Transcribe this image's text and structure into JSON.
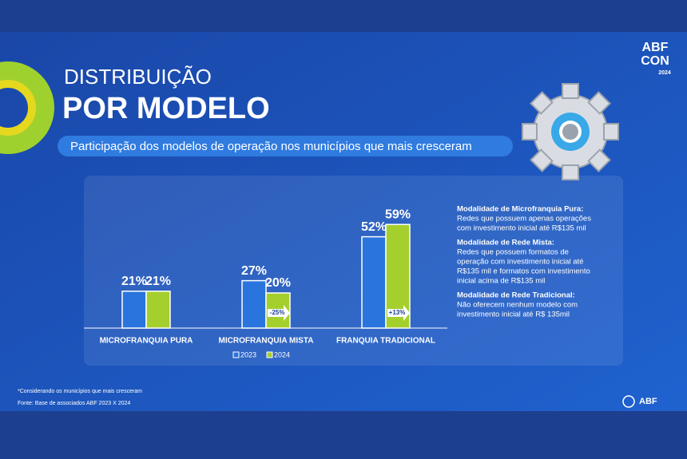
{
  "header": {
    "line1": "DISTRIBUIÇÃO",
    "line2": "POR MODELO",
    "subtitle": "Participação dos modelos de operação nos municípios que mais cresceram"
  },
  "logo": {
    "top": "ABF",
    "middle": "CON",
    "year": "2024",
    "bottom": "ABF"
  },
  "chart_data": {
    "type": "bar",
    "categories": [
      "MICROFRANQUIA PURA",
      "MICROFRANQUIA MISTA",
      "FRANQUIA TRADICIONAL"
    ],
    "series": [
      {
        "name": "2023",
        "color": "#2a74de",
        "values": [
          21,
          27,
          52
        ],
        "value_labels": [
          "21%",
          "27%",
          "52%"
        ]
      },
      {
        "name": "2024",
        "color": "#a4cf2c",
        "values": [
          21,
          20,
          59
        ],
        "value_labels": [
          "21%",
          "20%",
          "59%"
        ]
      }
    ],
    "annotations": [
      "-25%",
      "+13%"
    ]
  },
  "notes": [
    {
      "title": "Modalidade de Microfranquia Pura:",
      "lines": [
        "Redes que possuem apenas operações",
        "com investimento inicial até R$135 mil"
      ]
    },
    {
      "title": "Modalidade de Rede Mista:",
      "lines": [
        "Redes que possuem formatos de",
        "operação com investimento inicial até",
        "R$135 mil e formatos com investimento",
        "inicial acima de R$135 mil"
      ]
    },
    {
      "title": "Modalidade de Rede Tradicional:",
      "lines": [
        "Não oferecem nenhum modelo com",
        "investimento inicial até R$ 135mil"
      ]
    }
  ],
  "footnotes": [
    "*Considerando os municípios que mais cresceram",
    "Fonte: Base de associados ABF 2023 X 2024"
  ]
}
